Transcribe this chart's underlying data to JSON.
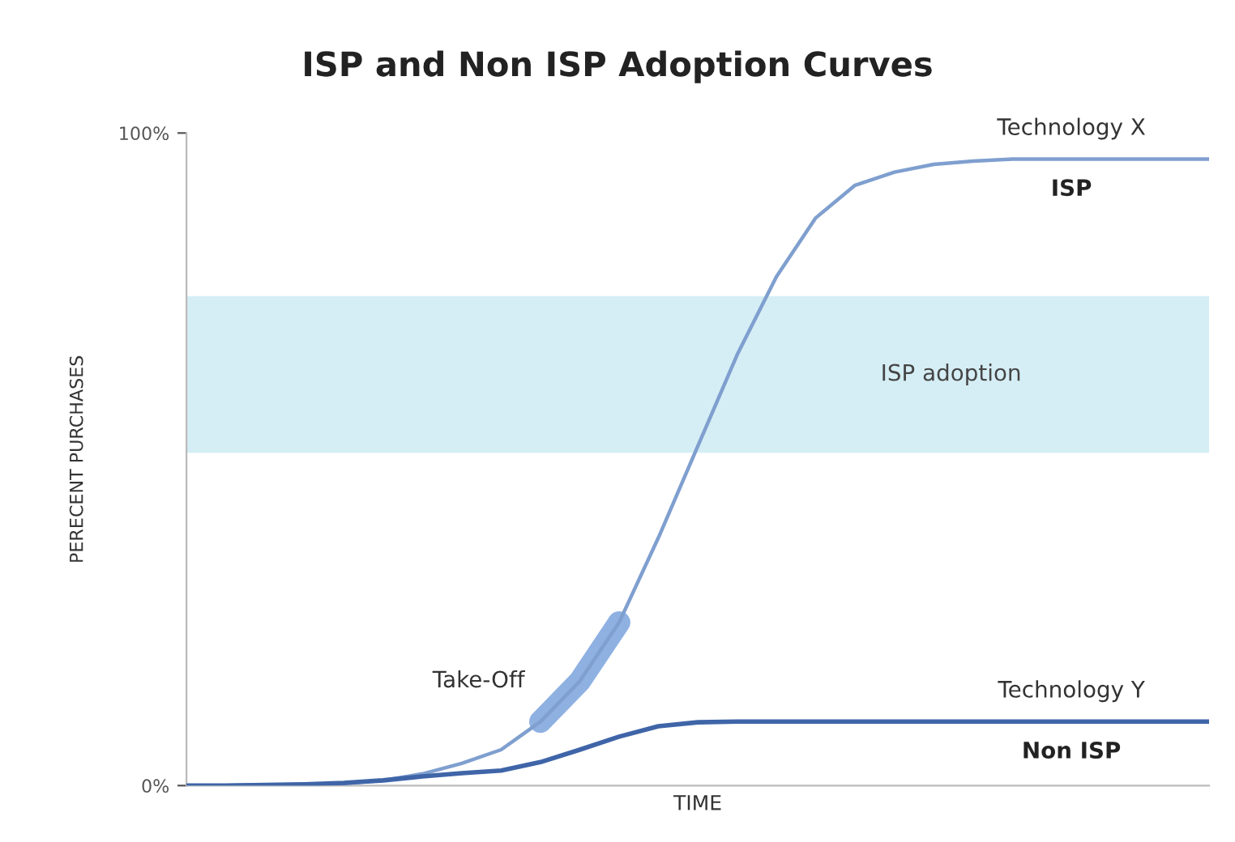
{
  "chart_data": {
    "type": "line",
    "title": "ISP and Non ISP Adoption Curves",
    "xlabel": "TIME",
    "ylabel": "PERECENT PURCHASES",
    "categories": [
      null,
      null,
      null,
      null,
      null,
      null,
      null,
      null,
      null,
      null,
      null,
      null,
      null,
      null,
      null,
      null,
      null,
      null,
      null,
      null,
      null,
      null,
      null,
      null,
      null,
      null,
      null
    ],
    "series": [
      {
        "name": "Technology X",
        "color": "#7f9fcf",
        "values": [
          0,
          0,
          0.1,
          0.2,
          0.3,
          0.8,
          1.8,
          3.4,
          5.5,
          9.8,
          16,
          25,
          38,
          52,
          66,
          78,
          87,
          92,
          94,
          95.2,
          95.7,
          96,
          96,
          96,
          96,
          96,
          96
        ]
      },
      {
        "name": "Technology Y",
        "color": "#3f65a8",
        "values": [
          0,
          0,
          0.1,
          0.2,
          0.4,
          0.8,
          1.4,
          1.9,
          2.3,
          3.6,
          5.5,
          7.5,
          9.1,
          9.7,
          9.8,
          9.8,
          9.8,
          9.8,
          9.8,
          9.8,
          9.8,
          9.8,
          9.8,
          9.8,
          9.8,
          9.8,
          9.8
        ]
      },
      {
        "name": "Take-Off",
        "color": "#7ba3dd",
        "values": [
          null,
          null,
          null,
          null,
          null,
          null,
          null,
          null,
          null,
          9.8,
          16,
          25,
          null,
          null,
          null,
          null,
          null,
          null,
          null,
          null,
          null,
          null,
          null,
          null,
          null,
          null,
          null
        ]
      }
    ],
    "annotations": [
      "ISP",
      "Non ISP"
    ],
    "bands": [
      {
        "axis": "y",
        "from": 51,
        "to": 75,
        "label": "ISP adoption",
        "color": "#d5eef5"
      }
    ],
    "ylim": [
      0,
      100
    ],
    "yticks": [
      {
        "value": 0,
        "label": "0%"
      },
      {
        "value": 100,
        "label": "100%"
      }
    ],
    "tick_labels": "y",
    "grid": false,
    "legend": false
  }
}
